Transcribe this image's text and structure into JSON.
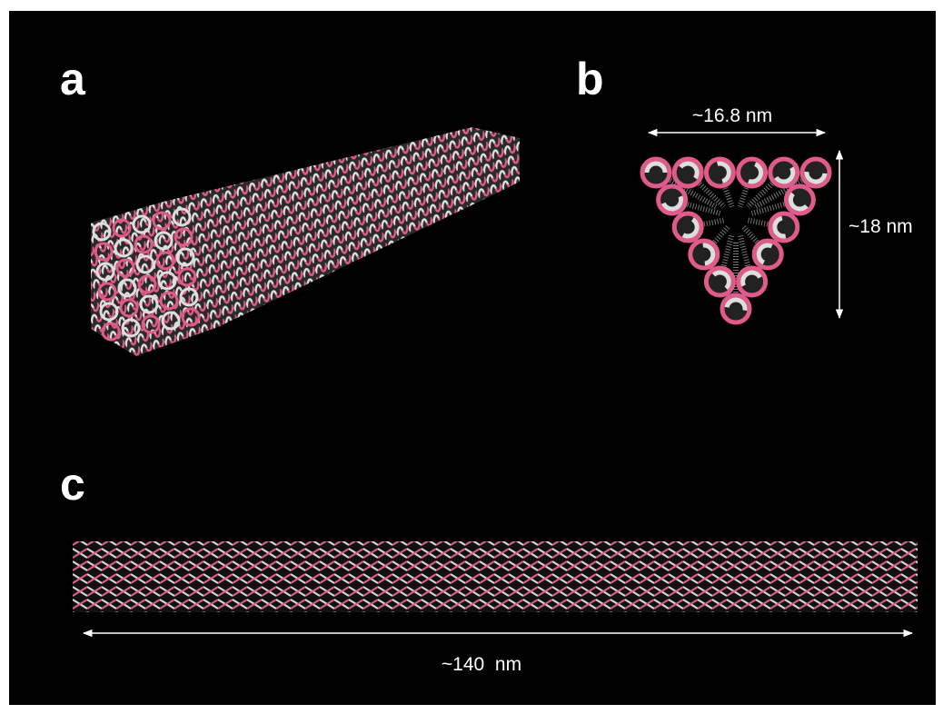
{
  "panels": [
    {
      "label": "a"
    },
    {
      "label": "b",
      "annotations": [
        "~16.8 nm",
        "~18 nm"
      ]
    },
    {
      "label": "c",
      "annotations": [
        "~140  nm"
      ]
    }
  ]
}
